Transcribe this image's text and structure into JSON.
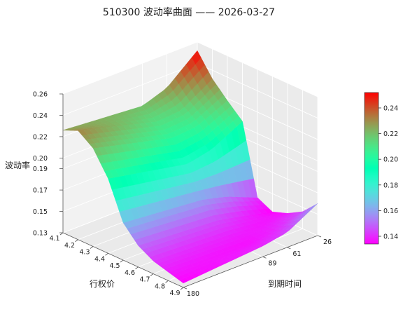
{
  "chart_data": {
    "type": "surface3d",
    "title": "510300 波动率曲面 —— 2026-03-27",
    "xlabel": "行权价",
    "ylabel": "到期时间",
    "zlabel": "波动率",
    "x_ticks": [
      "4.1",
      "4.2",
      "4.3",
      "4.4",
      "4.5",
      "4.6",
      "4.7",
      "4.8",
      "4.9"
    ],
    "y_ticks": [
      "26",
      "61",
      "89",
      "180"
    ],
    "z_ticks": [
      "0.13",
      "0.15",
      "0.17",
      "0.19",
      "0.20",
      "0.22",
      "0.24",
      "0.26"
    ],
    "colorbar_ticks": [
      "0.14",
      "0.16",
      "0.18",
      "0.20",
      "0.22",
      "0.24"
    ],
    "colormap": "rainbow",
    "grid": true,
    "xlim": [
      4.1,
      4.9
    ],
    "ylim": [
      26,
      180
    ],
    "zlim": [
      0.13,
      0.26
    ],
    "colorbar_range": [
      0.134,
      0.252
    ],
    "strikes": [
      4.1,
      4.2,
      4.3,
      4.4,
      4.5,
      4.6,
      4.7,
      4.8,
      4.9
    ],
    "expiries": [
      26,
      61,
      89,
      180
    ],
    "iv": [
      [
        0.252,
        0.232,
        0.218,
        0.205,
        0.14,
        0.133,
        0.138,
        0.146,
        0.16
      ],
      [
        0.228,
        0.214,
        0.205,
        0.19,
        0.152,
        0.14,
        0.137,
        0.139,
        0.144
      ],
      [
        0.22,
        0.212,
        0.203,
        0.185,
        0.158,
        0.145,
        0.139,
        0.136,
        0.14
      ],
      [
        0.226,
        0.232,
        0.222,
        0.2,
        0.165,
        0.15,
        0.142,
        0.138,
        0.134
      ]
    ]
  }
}
